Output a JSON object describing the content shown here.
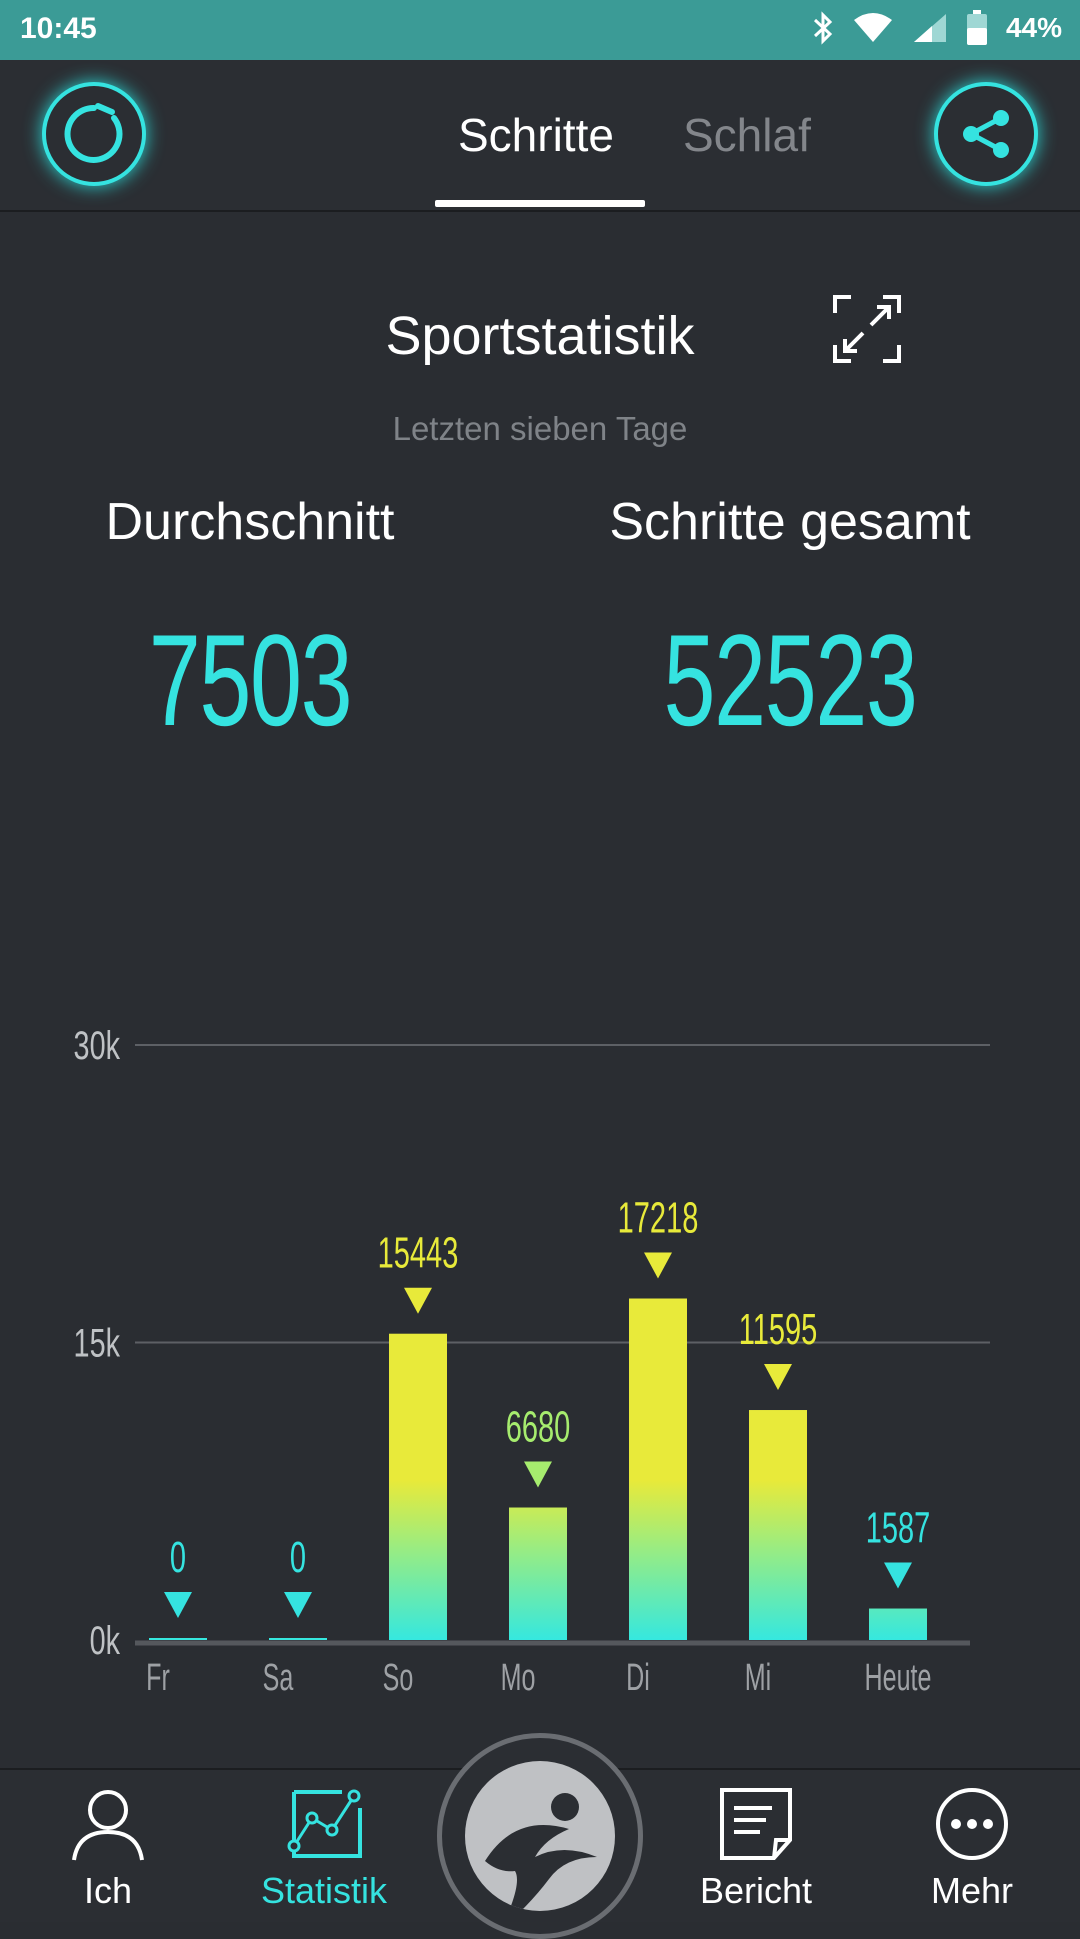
{
  "status_bar": {
    "time": "10:45",
    "battery": "44%"
  },
  "header": {
    "tabs": [
      {
        "label": "Schritte",
        "active": true
      },
      {
        "label": "Schlaf",
        "active": false
      }
    ]
  },
  "main": {
    "title": "Sportstatistik",
    "subtitle": "Letzten sieben Tage",
    "average": {
      "label": "Durchschnitt",
      "value": "7503"
    },
    "total": {
      "label": "Schritte gesamt",
      "value": "52523"
    }
  },
  "nav": {
    "items": [
      {
        "label": "Ich",
        "icon": "person-icon"
      },
      {
        "label": "Statistik",
        "icon": "chart-icon",
        "active": true
      },
      {
        "label": "Bericht",
        "icon": "report-icon"
      },
      {
        "label": "Mehr",
        "icon": "more-icon"
      }
    ]
  },
  "colors": {
    "accent": "#35e3e0",
    "bar_top": "#e8ea3a",
    "background": "#2a2d32"
  },
  "chart_data": {
    "type": "bar",
    "categories": [
      "Fr",
      "Sa",
      "So",
      "Mo",
      "Di",
      "Mi",
      "Heute"
    ],
    "values": [
      0,
      0,
      15443,
      6680,
      17218,
      11595,
      1587
    ],
    "ylim": [
      0,
      30000
    ],
    "yticks": [
      0,
      15000,
      30000
    ],
    "ytick_labels": [
      "0k",
      "15k",
      "30k"
    ],
    "grid": true
  }
}
